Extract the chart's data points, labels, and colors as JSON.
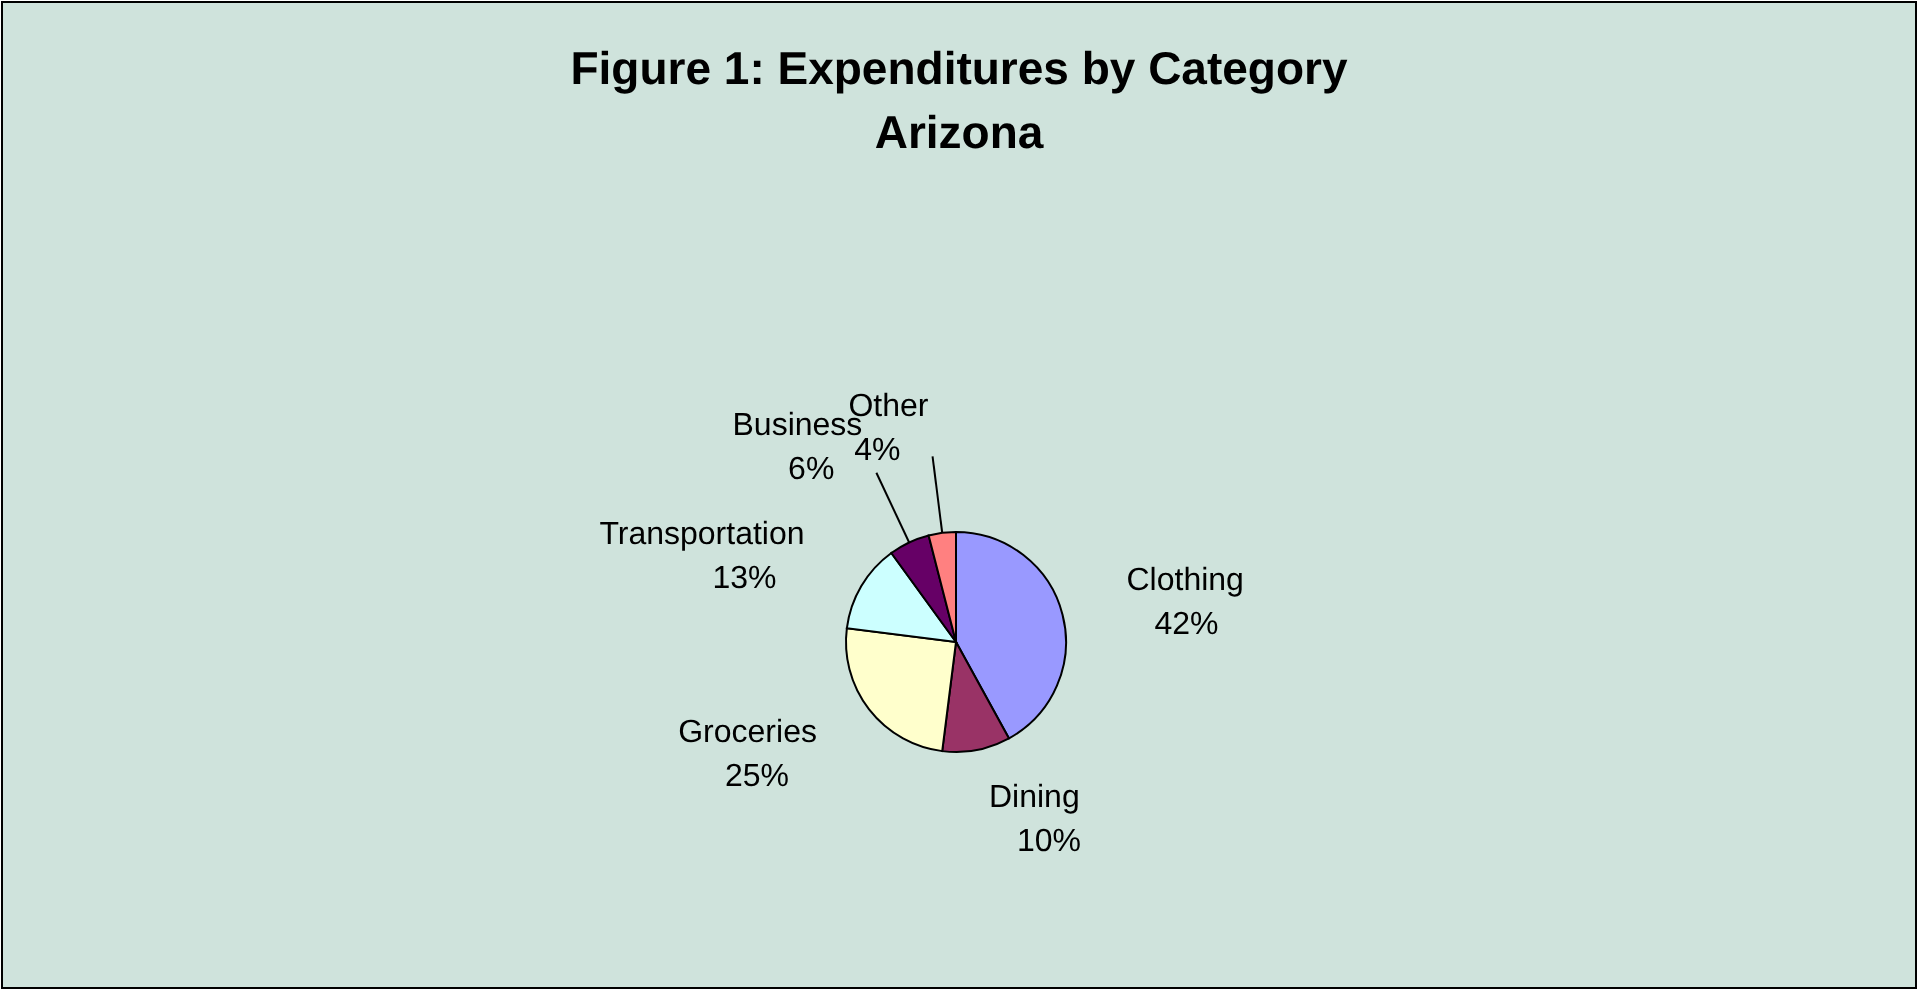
{
  "chart_data": {
    "type": "pie",
    "title": "Figure 1: Expenditures by Category\nArizona",
    "categories": [
      "Clothing",
      "Dining",
      "Groceries",
      "Transportation",
      "Business",
      "Other"
    ],
    "values": [
      42,
      10,
      25,
      13,
      6,
      4
    ],
    "colors": [
      "#9999ff",
      "#993366",
      "#ffffcc",
      "#ccffff",
      "#660066",
      "#ff8080"
    ],
    "value_labels": [
      "42%",
      "10%",
      "25%",
      "13%",
      "6%",
      "4%"
    ]
  }
}
